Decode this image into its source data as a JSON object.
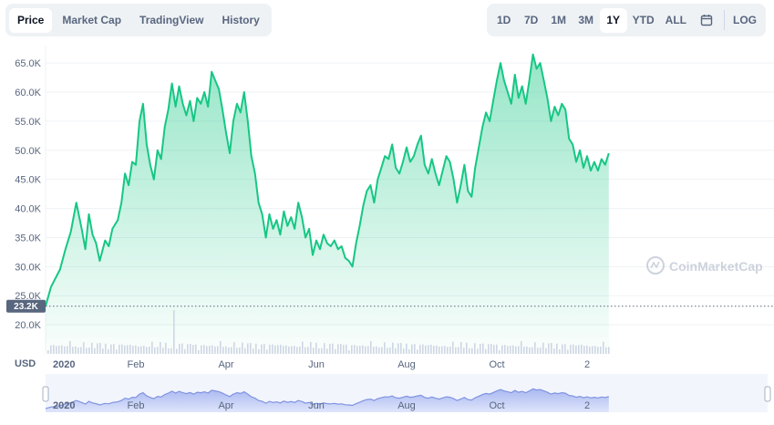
{
  "tabs": [
    "Price",
    "Market Cap",
    "TradingView",
    "History"
  ],
  "active_tab": "Price",
  "ranges": [
    "1D",
    "7D",
    "1M",
    "3M",
    "1Y",
    "YTD",
    "ALL"
  ],
  "active_range": "1Y",
  "log_label": "LOG",
  "calendar_icon": "calendar-icon",
  "currency_label": "USD",
  "watermark": "CoinMarketCap",
  "start_price_label": "23.2K",
  "colors": {
    "line": "#16c784",
    "volume": "#a6b0c3",
    "navigator_fill": "#c9d3f5",
    "navigator_line": "#8a9ee8",
    "text": "#58667e"
  },
  "chart_data": {
    "type": "area",
    "x_tick_labels": [
      "2020",
      "Feb",
      "Apr",
      "Jun",
      "Aug",
      "Oct",
      "2"
    ],
    "y_tick_labels": [
      "20.0K",
      "25.0K",
      "30.0K",
      "35.0K",
      "40.0K",
      "45.0K",
      "50.0K",
      "55.0K",
      "60.0K",
      "65.0K"
    ],
    "ylim": [
      15000,
      68000
    ],
    "start_price": 23200,
    "x_range": [
      0,
      400
    ],
    "x_ticks": [
      0,
      50,
      100,
      150,
      200,
      250,
      300
    ],
    "series": [
      {
        "values": [
          [
            0,
            23200
          ],
          [
            3,
            26500
          ],
          [
            8,
            29500
          ],
          [
            11,
            33000
          ],
          [
            14,
            36000
          ],
          [
            17,
            41000
          ],
          [
            20,
            36500
          ],
          [
            22,
            33000
          ],
          [
            24,
            39000
          ],
          [
            26,
            35500
          ],
          [
            28,
            34000
          ],
          [
            30,
            31000
          ],
          [
            33,
            34500
          ],
          [
            35,
            33500
          ],
          [
            37,
            36500
          ],
          [
            40,
            38000
          ],
          [
            42,
            41000
          ],
          [
            44,
            46000
          ],
          [
            46,
            44000
          ],
          [
            48,
            48000
          ],
          [
            50,
            47500
          ],
          [
            52,
            55000
          ],
          [
            54,
            58000
          ],
          [
            56,
            51000
          ],
          [
            58,
            47500
          ],
          [
            60,
            45000
          ],
          [
            62,
            50000
          ],
          [
            64,
            48500
          ],
          [
            66,
            54000
          ],
          [
            68,
            57000
          ],
          [
            70,
            61500
          ],
          [
            72,
            57500
          ],
          [
            74,
            61000
          ],
          [
            76,
            58000
          ],
          [
            78,
            56000
          ],
          [
            80,
            58500
          ],
          [
            82,
            55000
          ],
          [
            84,
            59000
          ],
          [
            86,
            58000
          ],
          [
            88,
            60000
          ],
          [
            90,
            57500
          ],
          [
            92,
            63500
          ],
          [
            94,
            62000
          ],
          [
            96,
            60500
          ],
          [
            98,
            57000
          ],
          [
            100,
            53000
          ],
          [
            102,
            49500
          ],
          [
            104,
            55000
          ],
          [
            106,
            58000
          ],
          [
            108,
            56500
          ],
          [
            110,
            60000
          ],
          [
            112,
            55000
          ],
          [
            114,
            49000
          ],
          [
            116,
            46000
          ],
          [
            118,
            41000
          ],
          [
            120,
            39000
          ],
          [
            122,
            35000
          ],
          [
            124,
            39000
          ],
          [
            126,
            36500
          ],
          [
            128,
            38000
          ],
          [
            130,
            35500
          ],
          [
            132,
            39500
          ],
          [
            134,
            37000
          ],
          [
            136,
            38500
          ],
          [
            138,
            36500
          ],
          [
            140,
            41000
          ],
          [
            142,
            38500
          ],
          [
            144,
            35000
          ],
          [
            146,
            36500
          ],
          [
            148,
            32000
          ],
          [
            150,
            34500
          ],
          [
            152,
            33000
          ],
          [
            154,
            35500
          ],
          [
            156,
            34000
          ],
          [
            158,
            33500
          ],
          [
            160,
            34500
          ],
          [
            162,
            33000
          ],
          [
            164,
            33500
          ],
          [
            166,
            31500
          ],
          [
            168,
            31000
          ],
          [
            170,
            30000
          ],
          [
            172,
            34000
          ],
          [
            174,
            37000
          ],
          [
            176,
            40500
          ],
          [
            178,
            43000
          ],
          [
            180,
            44000
          ],
          [
            182,
            41000
          ],
          [
            184,
            45000
          ],
          [
            186,
            47000
          ],
          [
            188,
            49000
          ],
          [
            190,
            48500
          ],
          [
            192,
            51000
          ],
          [
            194,
            47000
          ],
          [
            196,
            46000
          ],
          [
            198,
            48000
          ],
          [
            200,
            50500
          ],
          [
            202,
            48000
          ],
          [
            204,
            49000
          ],
          [
            206,
            51000
          ],
          [
            208,
            52500
          ],
          [
            210,
            47500
          ],
          [
            212,
            46000
          ],
          [
            214,
            48500
          ],
          [
            216,
            46000
          ],
          [
            218,
            44000
          ],
          [
            220,
            46500
          ],
          [
            222,
            49000
          ],
          [
            224,
            48000
          ],
          [
            226,
            45000
          ],
          [
            228,
            41000
          ],
          [
            230,
            44000
          ],
          [
            232,
            47500
          ],
          [
            234,
            43000
          ],
          [
            236,
            42000
          ],
          [
            238,
            47000
          ],
          [
            240,
            50500
          ],
          [
            242,
            54000
          ],
          [
            244,
            56500
          ],
          [
            246,
            55000
          ],
          [
            248,
            58500
          ],
          [
            250,
            62000
          ],
          [
            252,
            65000
          ],
          [
            254,
            62000
          ],
          [
            256,
            60000
          ],
          [
            258,
            58000
          ],
          [
            260,
            63000
          ],
          [
            262,
            59000
          ],
          [
            264,
            61000
          ],
          [
            266,
            58000
          ],
          [
            268,
            62000
          ],
          [
            270,
            66500
          ],
          [
            272,
            64000
          ],
          [
            274,
            65000
          ],
          [
            276,
            62000
          ],
          [
            278,
            59000
          ],
          [
            280,
            55000
          ],
          [
            282,
            57500
          ],
          [
            284,
            56000
          ],
          [
            286,
            58000
          ],
          [
            288,
            57000
          ],
          [
            290,
            52000
          ],
          [
            292,
            51000
          ],
          [
            294,
            48000
          ],
          [
            296,
            50000
          ],
          [
            298,
            47000
          ],
          [
            300,
            49000
          ],
          [
            302,
            46500
          ],
          [
            304,
            48000
          ],
          [
            306,
            46500
          ],
          [
            308,
            48500
          ],
          [
            310,
            47500
          ],
          [
            312,
            49500
          ]
        ]
      }
    ]
  }
}
